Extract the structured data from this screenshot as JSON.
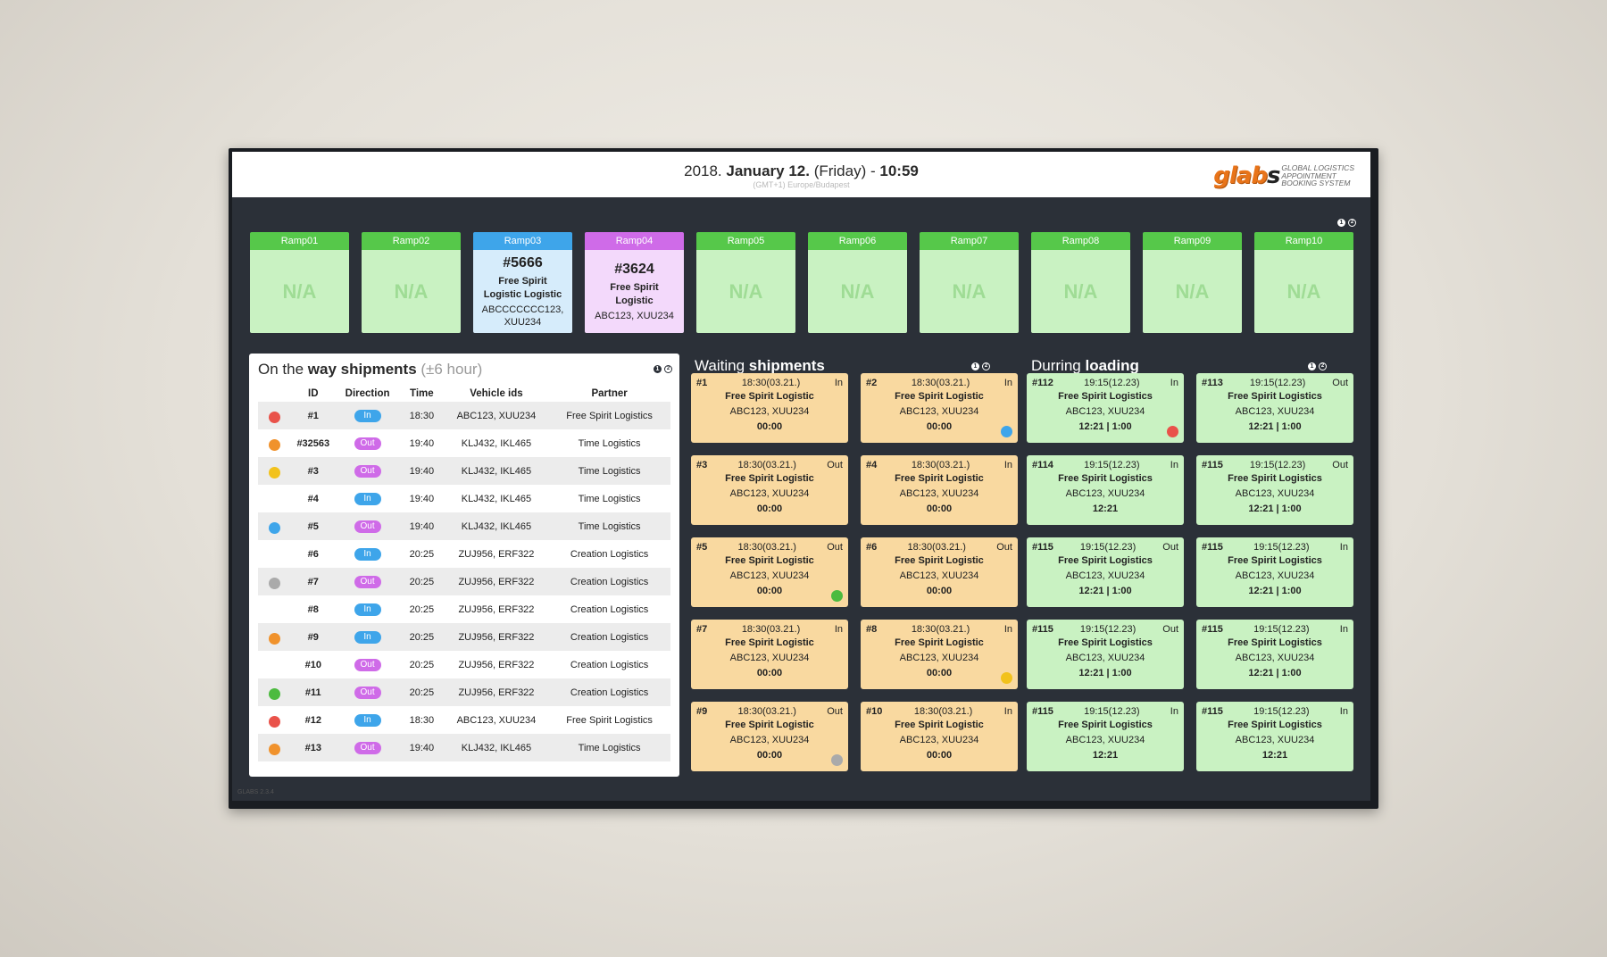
{
  "header": {
    "date_year": "2018.",
    "date_day": "January 12.",
    "date_weekday": "(Friday)",
    "date_sep": "-",
    "time": "10:59",
    "timezone": "(GMT+1) Europe/Budapest",
    "logo_mark_main": "glab",
    "logo_mark_last": "s",
    "logo_line1": "Global Logistics",
    "logo_line2": "Appointment",
    "logo_line3": "Booking System"
  },
  "info_icons": {
    "i1": "1",
    "i2": "2"
  },
  "ramps": [
    {
      "name": "Ramp01",
      "state": "na",
      "text": "N/A"
    },
    {
      "name": "Ramp02",
      "state": "na",
      "text": "N/A"
    },
    {
      "name": "Ramp03",
      "state": "blue",
      "id": "#5666",
      "partner": "Free Spirit Logistic Logistic",
      "vehicles": "ABCCCCCCC123, XUU234"
    },
    {
      "name": "Ramp04",
      "state": "purple",
      "id": "#3624",
      "partner": "Free Spirit Logistic",
      "vehicles": "ABC123, XUU234"
    },
    {
      "name": "Ramp05",
      "state": "na",
      "text": "N/A"
    },
    {
      "name": "Ramp06",
      "state": "na",
      "text": "N/A"
    },
    {
      "name": "Ramp07",
      "state": "na",
      "text": "N/A"
    },
    {
      "name": "Ramp08",
      "state": "na",
      "text": "N/A"
    },
    {
      "name": "Ramp09",
      "state": "na",
      "text": "N/A"
    },
    {
      "name": "Ramp10",
      "state": "na",
      "text": "N/A"
    }
  ],
  "on_the_way": {
    "title_pre": "On the",
    "title_bold": "way shipments",
    "title_muted": "(±6 hour)",
    "columns": [
      "",
      "ID",
      "Direction",
      "Time",
      "Vehicle ids",
      "Partner"
    ],
    "rows": [
      {
        "dot": "#e9524a",
        "id": "#1",
        "direction": "In",
        "time": "18:30",
        "vehicles": "ABC123, XUU234",
        "partner": "Free Spirit Logistics"
      },
      {
        "dot": "#f0922c",
        "id": "#32563",
        "direction": "Out",
        "time": "19:40",
        "vehicles": "KLJ432, IKL465",
        "partner": "Time Logistics"
      },
      {
        "dot": "#f2c21c",
        "id": "#3",
        "direction": "Out",
        "time": "19:40",
        "vehicles": "KLJ432, IKL465",
        "partner": "Time Logistics"
      },
      {
        "dot": "",
        "id": "#4",
        "direction": "In",
        "time": "19:40",
        "vehicles": "KLJ432, IKL465",
        "partner": "Time Logistics"
      },
      {
        "dot": "#3ea5ea",
        "id": "#5",
        "direction": "Out",
        "time": "19:40",
        "vehicles": "KLJ432, IKL465",
        "partner": "Time Logistics"
      },
      {
        "dot": "",
        "id": "#6",
        "direction": "In",
        "time": "20:25",
        "vehicles": "ZUJ956, ERF322",
        "partner": "Creation Logistics"
      },
      {
        "dot": "#aaaaaa",
        "id": "#7",
        "direction": "Out",
        "time": "20:25",
        "vehicles": "ZUJ956, ERF322",
        "partner": "Creation Logistics"
      },
      {
        "dot": "",
        "id": "#8",
        "direction": "In",
        "time": "20:25",
        "vehicles": "ZUJ956, ERF322",
        "partner": "Creation Logistics"
      },
      {
        "dot": "#f0922c",
        "id": "#9",
        "direction": "In",
        "time": "20:25",
        "vehicles": "ZUJ956, ERF322",
        "partner": "Creation Logistics"
      },
      {
        "dot": "",
        "id": "#10",
        "direction": "Out",
        "time": "20:25",
        "vehicles": "ZUJ956, ERF322",
        "partner": "Creation Logistics"
      },
      {
        "dot": "#4cbb3f",
        "id": "#11",
        "direction": "Out",
        "time": "20:25",
        "vehicles": "ZUJ956, ERF322",
        "partner": "Creation Logistics"
      },
      {
        "dot": "#e9524a",
        "id": "#12",
        "direction": "In",
        "time": "18:30",
        "vehicles": "ABC123, XUU234",
        "partner": "Free Spirit Logistics"
      },
      {
        "dot": "#f0922c",
        "id": "#13",
        "direction": "Out",
        "time": "19:40",
        "vehicles": "KLJ432, IKL465",
        "partner": "Time Logistics"
      }
    ]
  },
  "waiting": {
    "title_pre": "Waiting",
    "title_bold": "shipments",
    "cards": [
      {
        "id": "#1",
        "time": "18:30(03.21.)",
        "dir": "In",
        "partner": "Free Spirit Logistic",
        "vehicles": "ABC123, XUU234",
        "duration": "00:00",
        "dot": ""
      },
      {
        "id": "#2",
        "time": "18:30(03.21.)",
        "dir": "In",
        "partner": "Free Spirit Logistic",
        "vehicles": "ABC123, XUU234",
        "duration": "00:00",
        "dot": "#3ea5ea"
      },
      {
        "id": "#3",
        "time": "18:30(03.21.)",
        "dir": "Out",
        "partner": "Free Spirit Logistic",
        "vehicles": "ABC123, XUU234",
        "duration": "00:00",
        "dot": ""
      },
      {
        "id": "#4",
        "time": "18:30(03.21.)",
        "dir": "In",
        "partner": "Free Spirit Logistic",
        "vehicles": "ABC123, XUU234",
        "duration": "00:00",
        "dot": ""
      },
      {
        "id": "#5",
        "time": "18:30(03.21.)",
        "dir": "Out",
        "partner": "Free Spirit Logistic",
        "vehicles": "ABC123, XUU234",
        "duration": "00:00",
        "dot": "#4cbb3f"
      },
      {
        "id": "#6",
        "time": "18:30(03.21.)",
        "dir": "Out",
        "partner": "Free Spirit Logistic",
        "vehicles": "ABC123, XUU234",
        "duration": "00:00",
        "dot": ""
      },
      {
        "id": "#7",
        "time": "18:30(03.21.)",
        "dir": "In",
        "partner": "Free Spirit Logistic",
        "vehicles": "ABC123, XUU234",
        "duration": "00:00",
        "dot": ""
      },
      {
        "id": "#8",
        "time": "18:30(03.21.)",
        "dir": "In",
        "partner": "Free Spirit Logistic",
        "vehicles": "ABC123, XUU234",
        "duration": "00:00",
        "dot": "#f2c21c"
      },
      {
        "id": "#9",
        "time": "18:30(03.21.)",
        "dir": "Out",
        "partner": "Free Spirit Logistic",
        "vehicles": "ABC123, XUU234",
        "duration": "00:00",
        "dot": "#aaaaaa"
      },
      {
        "id": "#10",
        "time": "18:30(03.21.)",
        "dir": "In",
        "partner": "Free Spirit Logistic",
        "vehicles": "ABC123, XUU234",
        "duration": "00:00",
        "dot": ""
      }
    ]
  },
  "loading": {
    "title_pre": "Durring",
    "title_bold": "loading",
    "cards": [
      {
        "id": "#112",
        "time": "19:15(12.23)",
        "dir": "In",
        "partner": "Free Spirit Logistics",
        "vehicles": "ABC123, XUU234",
        "duration": "12:21 | 1:00",
        "dot": "#e9524a"
      },
      {
        "id": "#113",
        "time": "19:15(12.23)",
        "dir": "Out",
        "partner": "Free Spirit Logistics",
        "vehicles": "ABC123, XUU234",
        "duration": "12:21 | 1:00",
        "dot": ""
      },
      {
        "id": "#114",
        "time": "19:15(12.23)",
        "dir": "In",
        "partner": "Free Spirit Logistics",
        "vehicles": "ABC123, XUU234",
        "duration": "12:21",
        "dot": ""
      },
      {
        "id": "#115",
        "time": "19:15(12.23)",
        "dir": "Out",
        "partner": "Free Spirit Logistics",
        "vehicles": "ABC123, XUU234",
        "duration": "12:21 | 1:00",
        "dot": ""
      },
      {
        "id": "#115",
        "time": "19:15(12.23)",
        "dir": "Out",
        "partner": "Free Spirit Logistics",
        "vehicles": "ABC123, XUU234",
        "duration": "12:21 | 1:00",
        "dot": ""
      },
      {
        "id": "#115",
        "time": "19:15(12.23)",
        "dir": "In",
        "partner": "Free Spirit Logistics",
        "vehicles": "ABC123, XUU234",
        "duration": "12:21 | 1:00",
        "dot": ""
      },
      {
        "id": "#115",
        "time": "19:15(12.23)",
        "dir": "Out",
        "partner": "Free Spirit Logistics",
        "vehicles": "ABC123, XUU234",
        "duration": "12:21 | 1:00",
        "dot": ""
      },
      {
        "id": "#115",
        "time": "19:15(12.23)",
        "dir": "In",
        "partner": "Free Spirit Logistics",
        "vehicles": "ABC123, XUU234",
        "duration": "12:21 | 1:00",
        "dot": ""
      },
      {
        "id": "#115",
        "time": "19:15(12.23)",
        "dir": "In",
        "partner": "Free Spirit Logistics",
        "vehicles": "ABC123, XUU234",
        "duration": "12:21",
        "dot": ""
      },
      {
        "id": "#115",
        "time": "19:15(12.23)",
        "dir": "In",
        "partner": "Free Spirit Logistics",
        "vehicles": "ABC123, XUU234",
        "duration": "12:21",
        "dot": ""
      }
    ]
  },
  "footer": {
    "version": "GLABS 2.3.4"
  }
}
